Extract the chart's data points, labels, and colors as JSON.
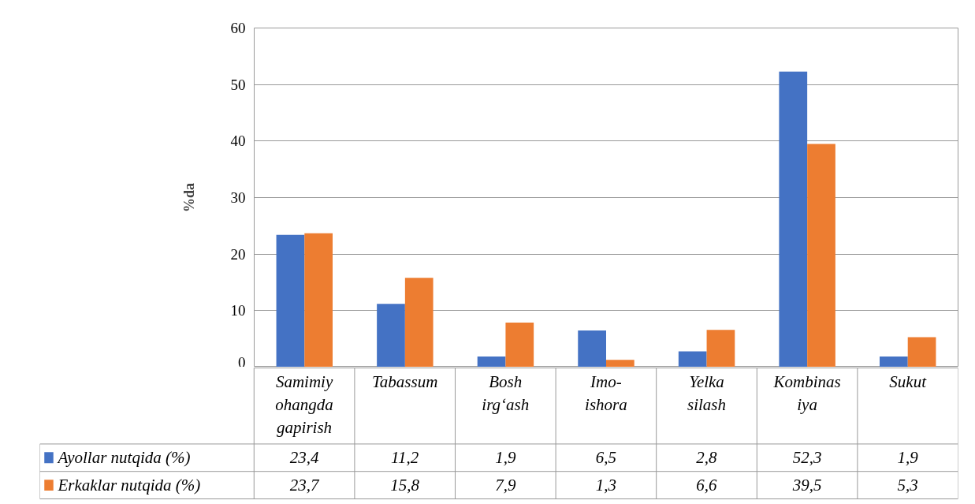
{
  "chart_data": {
    "type": "bar",
    "ylabel": "%da",
    "categories": [
      "Samimiy\nohangda\ngapirish",
      "Tabassum",
      "Bosh\nirg‘ash",
      "Imo-\nishora",
      "Yelka\nsilash",
      "Kombinas\niya",
      "Sukut"
    ],
    "series": [
      {
        "name": "Ayollar nutqida (%)",
        "color": "#4472c4",
        "values": [
          23.4,
          11.2,
          1.9,
          6.5,
          2.8,
          52.3,
          1.9
        ],
        "value_labels": [
          "23,4",
          "11,2",
          "1,9",
          "6,5",
          "2,8",
          "52,3",
          "1,9"
        ]
      },
      {
        "name": "Erkaklar nutqida (%)",
        "color": "#ed7d31",
        "values": [
          23.7,
          15.8,
          7.9,
          1.3,
          6.6,
          39.5,
          5.3
        ],
        "value_labels": [
          "23,7",
          "15,8",
          "7,9",
          "1,3",
          "6,6",
          "39,5",
          "5,3"
        ]
      }
    ],
    "ylim": [
      0,
      60
    ],
    "yticks": [
      0,
      10,
      20,
      30,
      40,
      50,
      60
    ],
    "grid": "y",
    "legend": "bottom"
  }
}
